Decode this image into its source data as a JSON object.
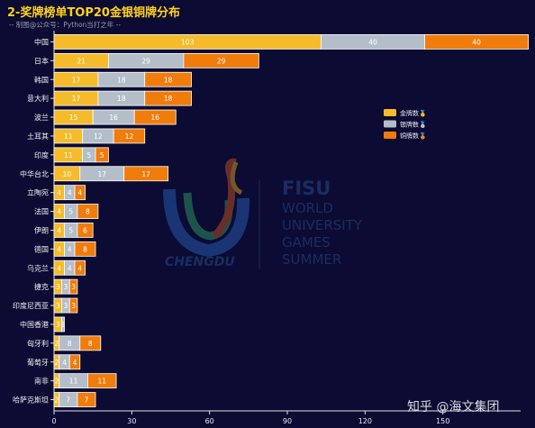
{
  "chart_data": {
    "type": "bar",
    "orientation": "horizontal",
    "stacked": true,
    "title": "2-奖牌榜单TOP20金银铜牌分布",
    "subtitle": "-- 制图@公众号：Python当打之年 --",
    "categories": [
      "中国",
      "日本",
      "韩国",
      "意大利",
      "波兰",
      "土耳其",
      "印度",
      "中华台北",
      "立陶宛",
      "法国",
      "伊朗",
      "德国",
      "乌克兰",
      "捷克",
      "印度尼西亚",
      "中国香港",
      "匈牙利",
      "葡萄牙",
      "南非",
      "哈萨克斯坦"
    ],
    "series": [
      {
        "name": "金牌数🥇",
        "color": "#f5bb2a",
        "values": [
          103,
          21,
          17,
          17,
          15,
          11,
          11,
          10,
          4,
          4,
          4,
          4,
          4,
          3,
          3,
          3,
          2,
          2,
          2,
          2
        ]
      },
      {
        "name": "银牌数🥈",
        "color": "#b4bec8",
        "values": [
          40,
          29,
          18,
          18,
          16,
          12,
          5,
          17,
          4,
          5,
          5,
          4,
          4,
          3,
          3,
          1,
          8,
          4,
          11,
          7
        ]
      },
      {
        "name": "铜牌数🥉",
        "color": "#f07c0c",
        "values": [
          40,
          29,
          18,
          18,
          16,
          12,
          5,
          17,
          4,
          8,
          6,
          8,
          4,
          3,
          3,
          0,
          8,
          4,
          11,
          7
        ]
      }
    ],
    "xlim": [
      0,
      180
    ],
    "xticks": [
      0,
      30,
      60,
      90,
      120,
      150
    ],
    "legend_position": "right"
  },
  "watermark": {
    "fisu": "FISU",
    "lines": [
      "WORLD",
      "UNIVERSITY",
      "GAMES",
      "SUMMER"
    ],
    "city": "CHENGDU"
  },
  "corner_brand": "知乎 @海文集团"
}
